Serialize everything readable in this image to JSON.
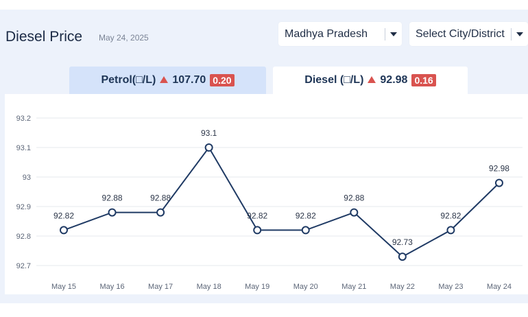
{
  "header": {
    "title": "Diesel Price",
    "date": "May 24, 2025"
  },
  "filters": {
    "state": "Madhya Pradesh",
    "city": "Select City/District"
  },
  "tabs": [
    {
      "fuel": "Petrol",
      "unit_label": "Petrol(□/L)",
      "price": "107.70",
      "change": "0.20",
      "active": false
    },
    {
      "fuel": "Diesel",
      "unit_label": "Diesel (□/L)",
      "price": "92.98",
      "change": "0.16",
      "active": true
    }
  ],
  "colors": {
    "line": "#1f3a64",
    "change_up": "#d9534f",
    "active_tab": "#ffffff",
    "inactive_tab": "#d5e3fa",
    "background": "#edf2fb"
  },
  "chart_data": {
    "type": "line",
    "title": "",
    "xlabel": "",
    "ylabel": "",
    "categories": [
      "May 15",
      "May 16",
      "May 17",
      "May 18",
      "May 19",
      "May 20",
      "May 21",
      "May 22",
      "May 23",
      "May 24"
    ],
    "series": [
      {
        "name": "Diesel",
        "values": [
          92.82,
          92.88,
          92.88,
          93.1,
          92.82,
          92.82,
          92.88,
          92.73,
          92.82,
          92.98
        ]
      }
    ],
    "data_labels": [
      "92.82",
      "92.88",
      "92.88",
      "93.1",
      "92.82",
      "92.82",
      "92.88",
      "92.73",
      "92.82",
      "92.98"
    ],
    "yticks": [
      92.7,
      92.8,
      92.9,
      93,
      93.1,
      93.2
    ],
    "ytick_labels": [
      "92.7",
      "92.8",
      "92.9",
      "93",
      "93.1",
      "93.2"
    ],
    "ylim": [
      92.7,
      93.2
    ],
    "grid": true,
    "legend": "none"
  }
}
